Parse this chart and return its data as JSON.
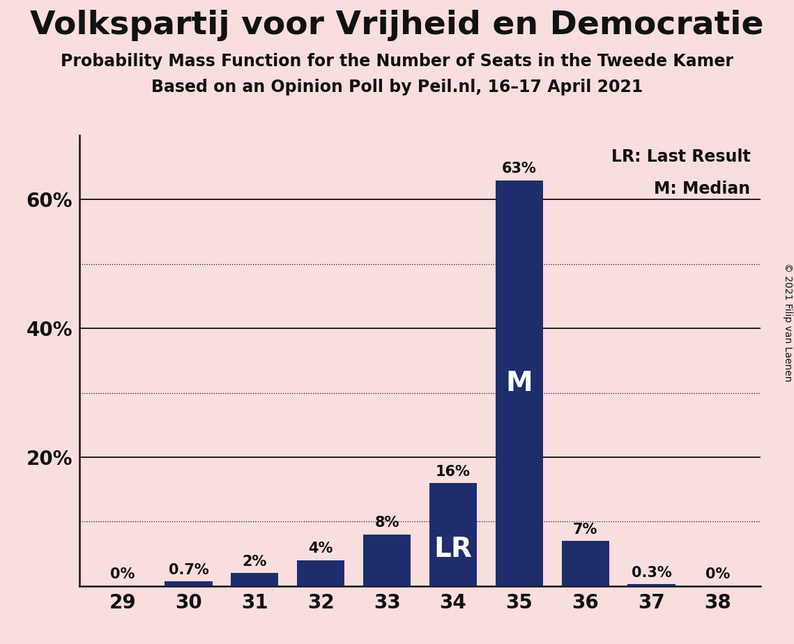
{
  "title": "Volkspartij voor Vrijheid en Democratie",
  "subtitle1": "Probability Mass Function for the Number of Seats in the Tweede Kamer",
  "subtitle2": "Based on an Opinion Poll by Peil.nl, 16–17 April 2021",
  "copyright": "© 2021 Filip van Laenen",
  "seats": [
    29,
    30,
    31,
    32,
    33,
    34,
    35,
    36,
    37,
    38
  ],
  "probabilities": [
    0.0,
    0.7,
    2.0,
    4.0,
    8.0,
    16.0,
    63.0,
    7.0,
    0.3,
    0.0
  ],
  "labels": [
    "0%",
    "0.7%",
    "2%",
    "4%",
    "8%",
    "16%",
    "63%",
    "7%",
    "0.3%",
    "0%"
  ],
  "bar_color": "#1e2d6b",
  "background_color": "#f9dede",
  "text_color": "#111111",
  "white_text_color": "#ffffff",
  "lr_seat": 34,
  "median_seat": 35,
  "ylim": [
    0,
    70
  ],
  "solid_yticks": [
    20,
    40,
    60
  ],
  "dotted_yticks": [
    10,
    30,
    50
  ],
  "ytick_labels": {
    "20": "20%",
    "40": "40%",
    "60": "60%"
  },
  "legend_lr": "LR: Last Result",
  "legend_m": "M: Median",
  "title_fontsize": 34,
  "subtitle_fontsize": 17,
  "label_fontsize": 15,
  "tick_fontsize": 20,
  "legend_fontsize": 17,
  "bar_label_inside_fontsize": 28,
  "copyright_fontsize": 10
}
